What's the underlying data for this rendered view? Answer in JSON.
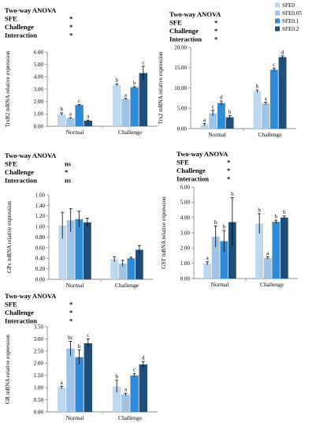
{
  "legend": {
    "entries": [
      "SFE0",
      "SFE0.05",
      "SFE0.1",
      "SFE0.2"
    ],
    "colors": [
      "#bdd7ee",
      "#9dc3e6",
      "#2e8bd8",
      "#1f4e79"
    ]
  },
  "chart_data": [
    {
      "type": "bar",
      "id": "trxr2",
      "ylabel": "TrxR2 mRNA relative expression",
      "anova": [
        [
          "Two-way ANOVA",
          ""
        ],
        [
          "SFE",
          "*"
        ],
        [
          "Challenge",
          "*"
        ],
        [
          "Interaction",
          "*"
        ]
      ],
      "categories": [
        "Normal",
        "Challenge"
      ],
      "ylim": [
        0,
        6
      ],
      "yticks": [
        "0.00",
        "1.00",
        "2.00",
        "3.00",
        "4.00",
        "5.00",
        "6.00"
      ],
      "series": [
        {
          "name": "SFE0",
          "values": [
            0.98,
            3.35
          ],
          "errors": [
            0.1,
            0.08
          ],
          "letters": [
            "b",
            "b"
          ]
        },
        {
          "name": "SFE0.05",
          "values": [
            0.65,
            2.2
          ],
          "errors": [
            0.05,
            0.05
          ],
          "letters": [
            "a",
            "a"
          ]
        },
        {
          "name": "SFE0.1",
          "values": [
            1.72,
            3.15
          ],
          "errors": [
            0.05,
            0.05
          ],
          "letters": [
            "c",
            "b"
          ]
        },
        {
          "name": "SFE0.2",
          "values": [
            0.45,
            4.3
          ],
          "errors": [
            0.05,
            0.55
          ],
          "letters": [
            "a",
            "c"
          ]
        }
      ]
    },
    {
      "type": "bar",
      "id": "trx2",
      "ylabel": "Trx2 mRNA relative expression",
      "anova": [
        [
          "Two-way ANOVA",
          ""
        ],
        [
          "SFE",
          "*"
        ],
        [
          "Challenge",
          "*"
        ],
        [
          "Interaction",
          "*"
        ]
      ],
      "categories": [
        "Normal",
        "Challenge"
      ],
      "ylim": [
        0,
        20
      ],
      "yticks": [
        "0.00",
        "5.00",
        "10.00",
        "15.00",
        "20.00"
      ],
      "series": [
        {
          "name": "SFE0",
          "values": [
            1.0,
            9.2
          ],
          "errors": [
            0.3,
            0.3
          ],
          "letters": [
            "a",
            "b"
          ]
        },
        {
          "name": "SFE0.05",
          "values": [
            3.8,
            6.2
          ],
          "errors": [
            0.7,
            0.3
          ],
          "letters": [
            "c",
            "a"
          ]
        },
        {
          "name": "SFE0.1",
          "values": [
            6.3,
            14.5
          ],
          "errors": [
            0.5,
            0.4
          ],
          "letters": [
            "d",
            "c"
          ]
        },
        {
          "name": "SFE0.2",
          "values": [
            2.8,
            17.6
          ],
          "errors": [
            0.4,
            0.3
          ],
          "letters": [
            "b",
            "d"
          ]
        }
      ]
    },
    {
      "type": "bar",
      "id": "gpx",
      "ylabel": "GPx mRNA relative expression",
      "anova": [
        [
          "Two-way ANOVA",
          ""
        ],
        [
          "SFE",
          "ns"
        ],
        [
          "Challenge",
          "*"
        ],
        [
          "Interaction",
          "ns"
        ]
      ],
      "categories": [
        "Normal",
        "Challenge"
      ],
      "ylim": [
        0,
        1.6
      ],
      "yticks": [
        "0.00",
        "0.20",
        "0.40",
        "0.60",
        "0.80",
        "1.00",
        "1.20",
        "1.40",
        "1.60"
      ],
      "series": [
        {
          "name": "SFE0",
          "values": [
            1.02,
            0.38
          ],
          "errors": [
            0.25,
            0.05
          ],
          "letters": [
            "",
            ""
          ]
        },
        {
          "name": "SFE0.05",
          "values": [
            1.12,
            0.3
          ],
          "errors": [
            0.22,
            0.06
          ],
          "letters": [
            "",
            ""
          ]
        },
        {
          "name": "SFE0.1",
          "values": [
            1.14,
            0.4
          ],
          "errors": [
            0.15,
            0.02
          ],
          "letters": [
            "",
            ""
          ]
        },
        {
          "name": "SFE0.2",
          "values": [
            1.08,
            0.56
          ],
          "errors": [
            0.08,
            0.08
          ],
          "letters": [
            "",
            ""
          ]
        }
      ]
    },
    {
      "type": "bar",
      "id": "gst",
      "ylabel": "GST mRNA relative expression",
      "anova": [
        [
          "Two-way ANOVA",
          ""
        ],
        [
          "SFE",
          "*"
        ],
        [
          "Challenge",
          "*"
        ],
        [
          "Interaction",
          "*"
        ]
      ],
      "categories": [
        "Normal",
        "Challenge"
      ],
      "ylim": [
        0,
        6
      ],
      "yticks": [
        "0.00",
        "1.00",
        "2.00",
        "3.00",
        "4.00",
        "5.00",
        "6.00"
      ],
      "series": [
        {
          "name": "SFE0",
          "values": [
            1.0,
            3.6
          ],
          "errors": [
            0.1,
            0.65
          ],
          "letters": [
            "a",
            "b"
          ]
        },
        {
          "name": "SFE0.05",
          "values": [
            2.75,
            1.35
          ],
          "errors": [
            0.7,
            0.08
          ],
          "letters": [
            "b",
            "a"
          ]
        },
        {
          "name": "SFE0.1",
          "values": [
            2.45,
            3.72
          ],
          "errors": [
            0.7,
            0.1
          ],
          "letters": [
            "b",
            "b"
          ]
        },
        {
          "name": "SFE0.2",
          "values": [
            3.7,
            4.0
          ],
          "errors": [
            1.6,
            0.1
          ],
          "letters": [
            "b",
            "b"
          ]
        }
      ]
    },
    {
      "type": "bar",
      "id": "gr",
      "ylabel": "GR mRNA relative expression",
      "anova": [
        [
          "Two-way ANOVA",
          ""
        ],
        [
          "SFE",
          "*"
        ],
        [
          "Challenge",
          "*"
        ],
        [
          "Interaction",
          "*"
        ]
      ],
      "categories": [
        "Normal",
        "Challenge"
      ],
      "ylim": [
        0,
        3.5
      ],
      "yticks": [
        "0.00",
        "0.50",
        "1.00",
        "1.50",
        "2.00",
        "2.50",
        "3.00",
        "3.50"
      ],
      "series": [
        {
          "name": "SFE0",
          "values": [
            1.0,
            1.05
          ],
          "errors": [
            0.05,
            0.25
          ],
          "letters": [
            "a",
            "b"
          ]
        },
        {
          "name": "SFE0.05",
          "values": [
            2.6,
            0.72
          ],
          "errors": [
            0.3,
            0.05
          ],
          "letters": [
            "bc",
            "a"
          ]
        },
        {
          "name": "SFE0.1",
          "values": [
            2.25,
            1.5
          ],
          "errors": [
            0.3,
            0.08
          ],
          "letters": [
            "b",
            "c"
          ]
        },
        {
          "name": "SFE0.2",
          "values": [
            2.82,
            1.95
          ],
          "errors": [
            0.18,
            0.12
          ],
          "letters": [
            "c",
            "d"
          ]
        }
      ]
    }
  ]
}
